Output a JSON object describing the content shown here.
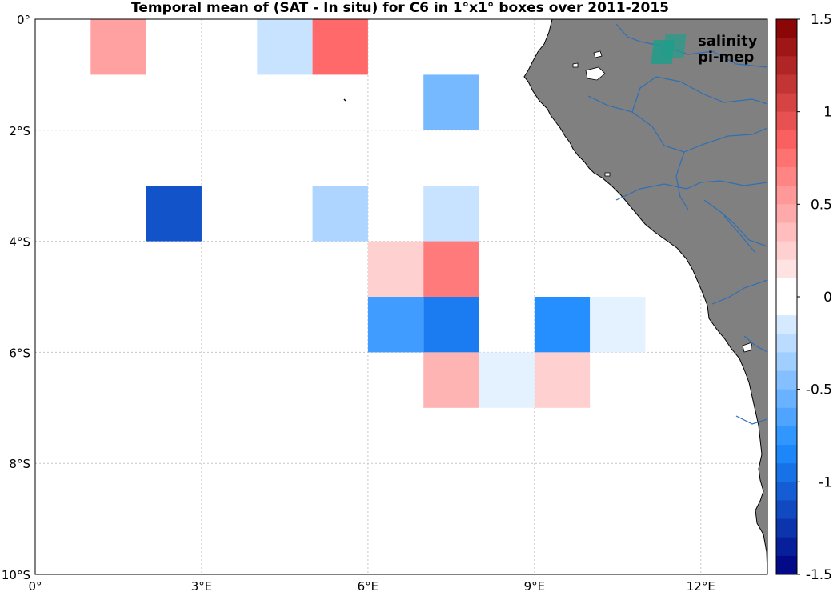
{
  "title": "Temporal mean of (SAT - In situ) for C6 in 1°x1° boxes over 2011-2015",
  "logo": {
    "line1": "salinity",
    "line2": "pi-mep",
    "color": "#1f9e8a"
  },
  "colors": {
    "land": "#808080",
    "rivers": "#2f6fb5",
    "ocean": "#ffffff",
    "grid": "#c8c8c8"
  },
  "map_data": {
    "lon_range": [
      0,
      13.2
    ],
    "lat_range": [
      -10,
      0
    ],
    "lon_ticks": [
      {
        "lon": 0,
        "label": "0°"
      },
      {
        "lon": 3,
        "label": "3°E"
      },
      {
        "lon": 6,
        "label": "6°E"
      },
      {
        "lon": 9,
        "label": "9°E"
      },
      {
        "lon": 12,
        "label": "12°E"
      }
    ],
    "lat_ticks": [
      {
        "lat": 0,
        "label": "0°"
      },
      {
        "lat": -2,
        "label": "2°S"
      },
      {
        "lat": -4,
        "label": "4°S"
      },
      {
        "lat": -6,
        "label": "6°S"
      },
      {
        "lat": -8,
        "label": "8°S"
      },
      {
        "lat": -10,
        "label": "10°S"
      }
    ],
    "boxes": [
      {
        "lon": 1,
        "lat": 0,
        "value": 0.5
      },
      {
        "lon": 4,
        "lat": 0,
        "value": -0.2
      },
      {
        "lon": 5,
        "lat": 0,
        "value": 0.8
      },
      {
        "lon": 7,
        "lat": -1,
        "value": -0.5
      },
      {
        "lon": 2,
        "lat": -3,
        "value": -1.1
      },
      {
        "lon": 5,
        "lat": -3,
        "value": -0.3
      },
      {
        "lon": 7,
        "lat": -3,
        "value": -0.2
      },
      {
        "lon": 6,
        "lat": -4,
        "value": 0.25
      },
      {
        "lon": 7,
        "lat": -4,
        "value": 0.7
      },
      {
        "lon": 6,
        "lat": -5,
        "value": -0.7
      },
      {
        "lon": 7,
        "lat": -5,
        "value": -0.9
      },
      {
        "lon": 9,
        "lat": -5,
        "value": -0.8
      },
      {
        "lon": 10,
        "lat": -5,
        "value": -0.1
      },
      {
        "lon": 7,
        "lat": -6,
        "value": 0.4
      },
      {
        "lon": 8,
        "lat": -6,
        "value": -0.1
      },
      {
        "lon": 9,
        "lat": -6,
        "value": 0.25
      }
    ],
    "colorbar": {
      "min": -1.5,
      "max": 1.5,
      "ticks": [
        {
          "value": 1.5,
          "label": "1.5"
        },
        {
          "value": 1,
          "label": "1"
        },
        {
          "value": 0.5,
          "label": "0.5"
        },
        {
          "value": 0,
          "label": "0"
        },
        {
          "value": -0.5,
          "label": "-0.5"
        },
        {
          "value": -1,
          "label": "-1"
        },
        {
          "value": -1.5,
          "label": "-1.5"
        }
      ]
    }
  }
}
